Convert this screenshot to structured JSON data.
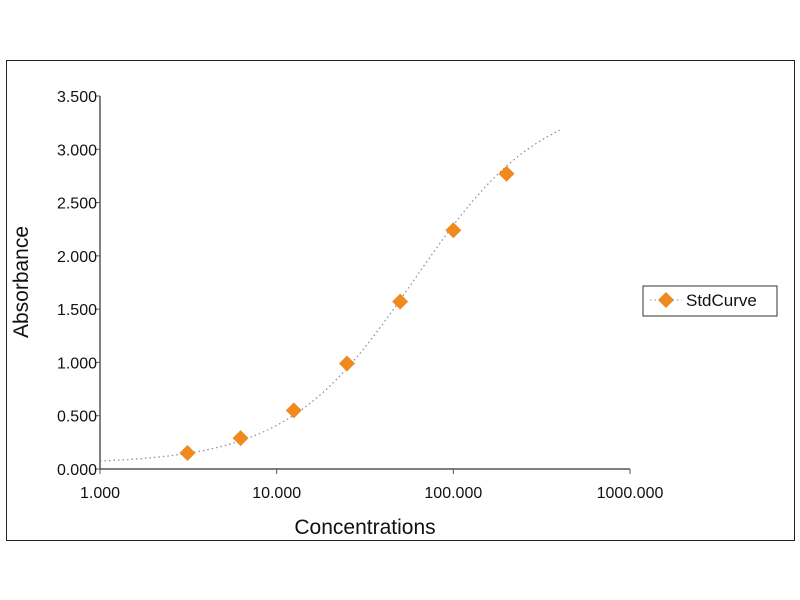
{
  "chart_data": {
    "type": "scatter",
    "title": "",
    "xlabel": "Concentrations",
    "ylabel": "Absorbance",
    "xscale": "log",
    "xlim": [
      1,
      1000
    ],
    "ylim": [
      0,
      3.5
    ],
    "xticks": [
      "1.000",
      "10.000",
      "100.000",
      "1000.000"
    ],
    "yticks": [
      "0.000",
      "0.500",
      "1.000",
      "1.500",
      "2.000",
      "2.500",
      "3.000",
      "3.500"
    ],
    "grid": false,
    "legend_position": "right",
    "series": [
      {
        "name": "StdCurve",
        "marker": "diamond",
        "color": "#f08a1e",
        "x": [
          3.125,
          6.25,
          12.5,
          25,
          50,
          100,
          200
        ],
        "y": [
          0.15,
          0.29,
          0.55,
          0.99,
          1.57,
          2.24,
          2.77
        ]
      }
    ],
    "fit_line": {
      "style": "dotted",
      "color": "#8a94a6",
      "x_range": [
        1,
        400
      ]
    }
  }
}
